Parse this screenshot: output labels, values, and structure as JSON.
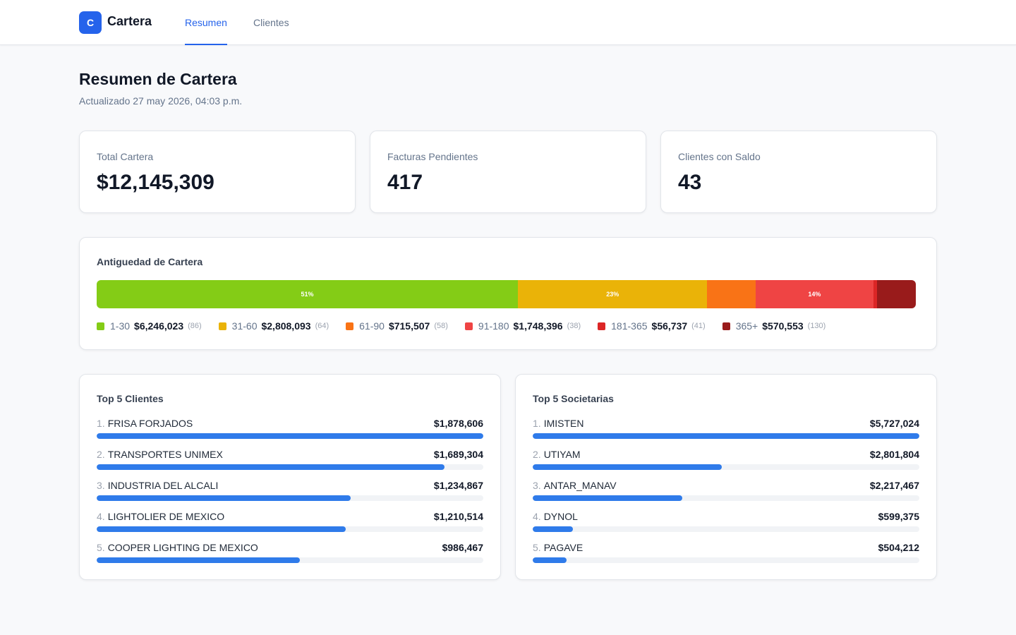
{
  "nav": {
    "logo": "C",
    "brand": "Cartera",
    "tabs": [
      "Resumen",
      "Clientes"
    ]
  },
  "header": {
    "title": "Resumen de Cartera",
    "subtitle": "Actualizado 27 may 2026, 04:03 p.m."
  },
  "kpis": [
    {
      "label": "Total Cartera",
      "value": "$12,145,309"
    },
    {
      "label": "Facturas Pendientes",
      "value": 417
    },
    {
      "label": "Clientes con Saldo",
      "value": 43
    }
  ],
  "aging": {
    "title": "Antiguedad de Cartera",
    "buckets": [
      {
        "label": "1-30",
        "amount": 6246023,
        "amount_label": "$6,246,023",
        "count_label": "(86)",
        "color": "#84cc16",
        "percent_label": "51%"
      },
      {
        "label": "31-60",
        "amount": 2808093,
        "amount_label": "$2,808,093",
        "count_label": "(64)",
        "color": "#eab308",
        "percent_label": "23%"
      },
      {
        "label": "61-90",
        "amount": 715507,
        "amount_label": "$715,507",
        "count_label": "(58)",
        "color": "#f97316"
      },
      {
        "label": "91-180",
        "amount": 1748396,
        "amount_label": "$1,748,396",
        "count_label": "(38)",
        "color": "#ef4444",
        "percent_label": "14%"
      },
      {
        "label": "181-365",
        "amount": 56737,
        "amount_label": "$56,737",
        "count_label": "(41)",
        "color": "#dc2626"
      },
      {
        "label": "365+",
        "amount": 570553,
        "amount_label": "$570,553",
        "count_label": "(130)",
        "color": "#991b1b"
      }
    ]
  },
  "top_lists": [
    {
      "title": "Top 5 Clientes",
      "color": "#2f7bea",
      "items": [
        {
          "rank": "1.",
          "name": "FRISA FORJADOS",
          "amount": 1878606,
          "amount_label": "$1,878,606"
        },
        {
          "rank": "2.",
          "name": "TRANSPORTES UNIMEX",
          "amount": 1689304,
          "amount_label": "$1,689,304"
        },
        {
          "rank": "3.",
          "name": "INDUSTRIA DEL ALCALI",
          "amount": 1234867,
          "amount_label": "$1,234,867"
        },
        {
          "rank": "4.",
          "name": "LIGHTOLIER DE MEXICO",
          "amount": 1210514,
          "amount_label": "$1,210,514"
        },
        {
          "rank": "5.",
          "name": "COOPER LIGHTING DE MEXICO",
          "amount": 986467,
          "amount_label": "$986,467"
        }
      ]
    },
    {
      "title": "Top 5 Societarias",
      "color": "#2f7bea",
      "items": [
        {
          "rank": "1.",
          "name": "IMISTEN",
          "amount": 5727024,
          "amount_label": "$5,727,024"
        },
        {
          "rank": "2.",
          "name": "UTIYAM",
          "amount": 2801804,
          "amount_label": "$2,801,804"
        },
        {
          "rank": "3.",
          "name": "ANTAR_MANAV",
          "amount": 2217467,
          "amount_label": "$2,217,467"
        },
        {
          "rank": "4.",
          "name": "DYNOL",
          "amount": 599375,
          "amount_label": "$599,375"
        },
        {
          "rank": "5.",
          "name": "PAGAVE",
          "amount": 504212,
          "amount_label": "$504,212"
        }
      ]
    }
  ]
}
